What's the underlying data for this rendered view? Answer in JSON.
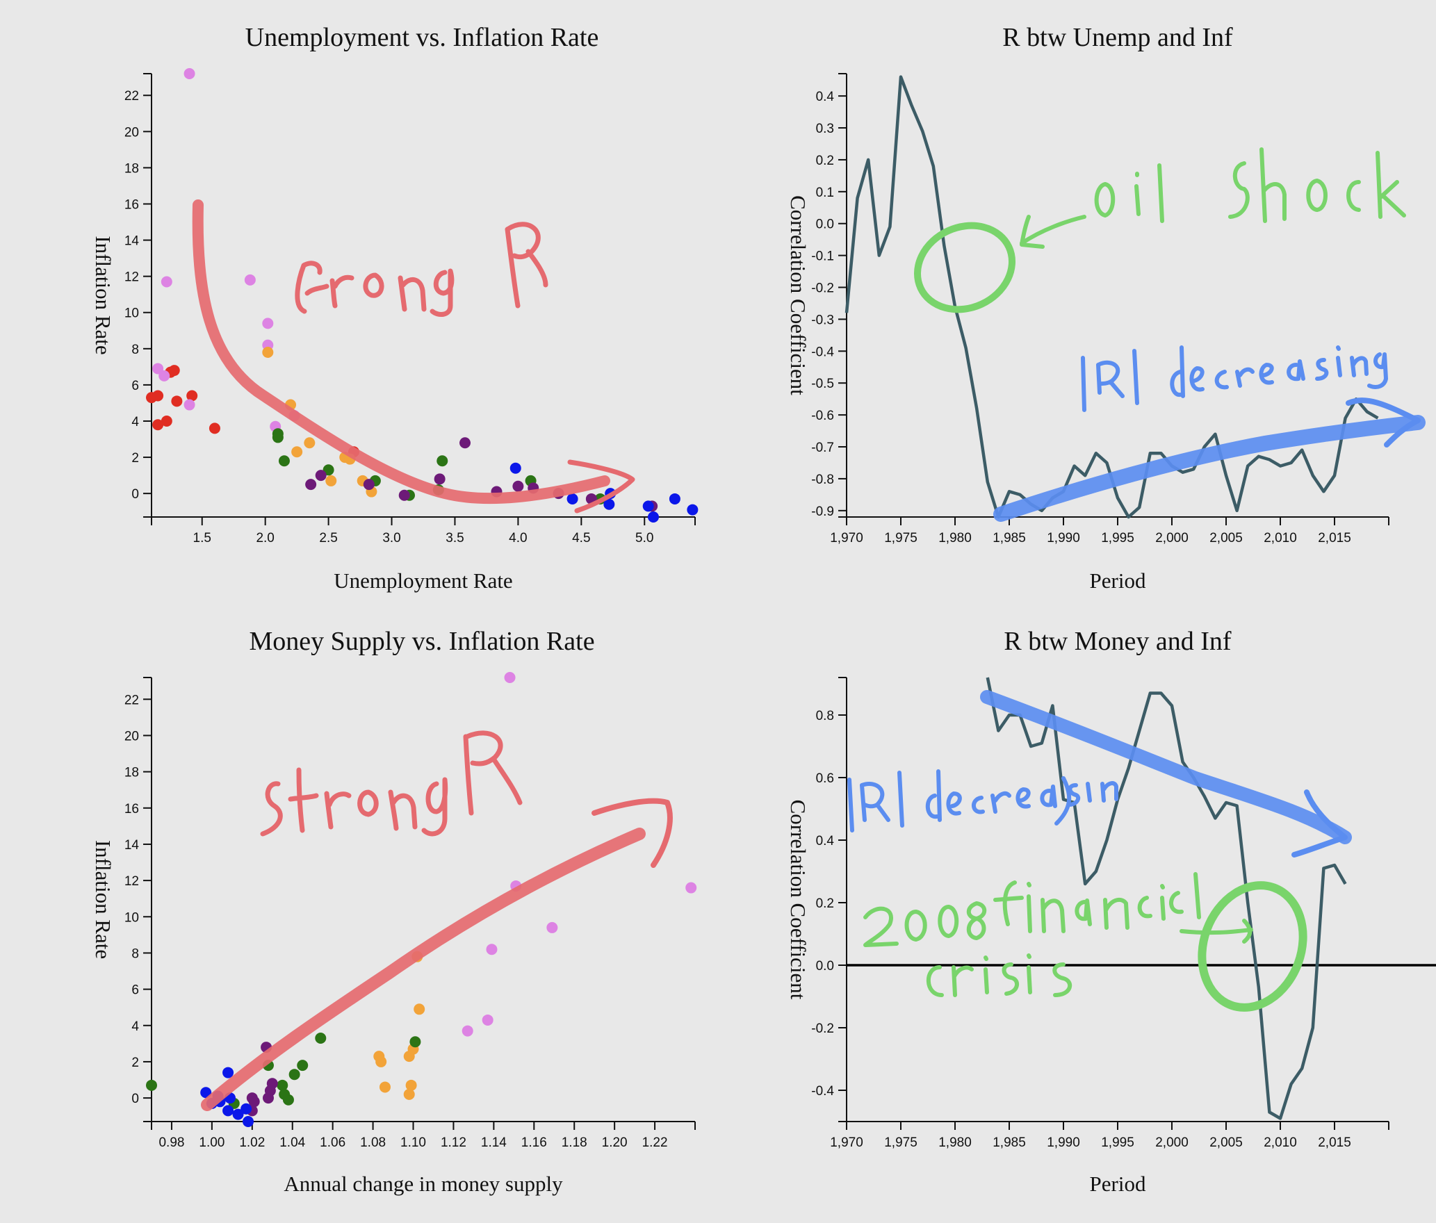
{
  "palette": {
    "red": "#e02d22",
    "violet": "#dd83e3",
    "orange": "#f2a339",
    "green": "#2b7415",
    "purple": "#6d1a78",
    "blue": "#0b17e9",
    "line": "#3c5c66",
    "annotation_red": "#e56a6f",
    "annotation_blue": "#5b8df0",
    "annotation_green": "#79d46b"
  },
  "chart_data": [
    {
      "id": "unemp-inf",
      "type": "scatter",
      "title": "Unemployment vs. Inflation Rate",
      "xlabel": "Unemployment Rate",
      "ylabel": "Inflation Rate",
      "xlim": [
        1.1,
        5.4
      ],
      "ylim": [
        -1.3,
        23.2
      ],
      "xticks": [
        "1.5",
        "2.0",
        "2.5",
        "3.0",
        "3.5",
        "4.0",
        "4.5",
        "5.0"
      ],
      "xtick_values": [
        1.5,
        2.0,
        2.5,
        3.0,
        3.5,
        4.0,
        4.5,
        5.0
      ],
      "yticks": [
        "0",
        "2",
        "4",
        "6",
        "8",
        "10",
        "12",
        "14",
        "16",
        "18",
        "20",
        "22"
      ],
      "ytick_values": [
        0,
        2,
        4,
        6,
        8,
        10,
        12,
        14,
        16,
        18,
        20,
        22
      ],
      "annotations": [
        "Strong R"
      ],
      "points": [
        {
          "x": 1.1,
          "y": 5.3,
          "c": "red"
        },
        {
          "x": 1.15,
          "y": 5.4,
          "c": "red"
        },
        {
          "x": 1.15,
          "y": 3.8,
          "c": "red"
        },
        {
          "x": 1.22,
          "y": 4.0,
          "c": "red"
        },
        {
          "x": 1.25,
          "y": 6.7,
          "c": "red"
        },
        {
          "x": 1.28,
          "y": 6.8,
          "c": "red"
        },
        {
          "x": 1.3,
          "y": 5.1,
          "c": "red"
        },
        {
          "x": 1.42,
          "y": 5.4,
          "c": "red"
        },
        {
          "x": 1.6,
          "y": 3.6,
          "c": "red"
        },
        {
          "x": 2.7,
          "y": 2.3,
          "c": "red"
        },
        {
          "x": 1.4,
          "y": 23.2,
          "c": "violet"
        },
        {
          "x": 1.22,
          "y": 11.7,
          "c": "violet"
        },
        {
          "x": 1.15,
          "y": 6.9,
          "c": "violet"
        },
        {
          "x": 1.2,
          "y": 6.5,
          "c": "violet"
        },
        {
          "x": 1.4,
          "y": 4.9,
          "c": "violet"
        },
        {
          "x": 1.88,
          "y": 11.8,
          "c": "violet"
        },
        {
          "x": 2.02,
          "y": 9.4,
          "c": "violet"
        },
        {
          "x": 2.02,
          "y": 8.2,
          "c": "violet"
        },
        {
          "x": 2.08,
          "y": 3.7,
          "c": "violet"
        },
        {
          "x": 2.23,
          "y": 4.3,
          "c": "violet"
        },
        {
          "x": 2.02,
          "y": 7.8,
          "c": "orange"
        },
        {
          "x": 2.2,
          "y": 4.9,
          "c": "orange"
        },
        {
          "x": 2.25,
          "y": 2.3,
          "c": "orange"
        },
        {
          "x": 2.35,
          "y": 2.8,
          "c": "orange"
        },
        {
          "x": 2.52,
          "y": 0.7,
          "c": "orange"
        },
        {
          "x": 2.63,
          "y": 2.0,
          "c": "orange"
        },
        {
          "x": 2.67,
          "y": 1.9,
          "c": "orange"
        },
        {
          "x": 2.77,
          "y": 0.7,
          "c": "orange"
        },
        {
          "x": 2.84,
          "y": 0.1,
          "c": "orange"
        },
        {
          "x": 2.1,
          "y": 3.3,
          "c": "green"
        },
        {
          "x": 2.1,
          "y": 3.1,
          "c": "green"
        },
        {
          "x": 2.15,
          "y": 1.8,
          "c": "green"
        },
        {
          "x": 2.5,
          "y": 1.3,
          "c": "green"
        },
        {
          "x": 2.87,
          "y": 0.7,
          "c": "green"
        },
        {
          "x": 3.14,
          "y": -0.1,
          "c": "green"
        },
        {
          "x": 3.37,
          "y": 0.2,
          "c": "green"
        },
        {
          "x": 3.4,
          "y": 1.8,
          "c": "green"
        },
        {
          "x": 4.1,
          "y": 0.7,
          "c": "green"
        },
        {
          "x": 4.65,
          "y": -0.3,
          "c": "green"
        },
        {
          "x": 2.36,
          "y": 0.5,
          "c": "purple"
        },
        {
          "x": 2.44,
          "y": 1.0,
          "c": "purple"
        },
        {
          "x": 2.82,
          "y": 0.5,
          "c": "purple"
        },
        {
          "x": 3.1,
          "y": -0.1,
          "c": "purple"
        },
        {
          "x": 3.38,
          "y": 0.8,
          "c": "purple"
        },
        {
          "x": 3.58,
          "y": 2.8,
          "c": "purple"
        },
        {
          "x": 3.83,
          "y": 0.1,
          "c": "purple"
        },
        {
          "x": 4.0,
          "y": 0.4,
          "c": "purple"
        },
        {
          "x": 4.12,
          "y": 0.3,
          "c": "purple"
        },
        {
          "x": 4.32,
          "y": 0.0,
          "c": "purple"
        },
        {
          "x": 4.58,
          "y": -0.3,
          "c": "purple"
        },
        {
          "x": 5.06,
          "y": -0.7,
          "c": "purple"
        },
        {
          "x": 3.98,
          "y": 1.4,
          "c": "blue"
        },
        {
          "x": 4.43,
          "y": -0.3,
          "c": "blue"
        },
        {
          "x": 4.72,
          "y": -0.6,
          "c": "blue"
        },
        {
          "x": 4.73,
          "y": 0.0,
          "c": "blue"
        },
        {
          "x": 5.03,
          "y": -0.7,
          "c": "blue"
        },
        {
          "x": 5.07,
          "y": -1.3,
          "c": "blue"
        },
        {
          "x": 5.24,
          "y": -0.3,
          "c": "blue"
        },
        {
          "x": 5.38,
          "y": -0.9,
          "c": "blue"
        }
      ]
    },
    {
      "id": "r-unemp-inf",
      "type": "line",
      "title": "R btw Unemp and Inf",
      "xlabel": "Period",
      "ylabel": "Correlation Coefficient",
      "xlim": [
        1970,
        2020
      ],
      "ylim": [
        -0.92,
        0.47
      ],
      "xticks": [
        "1,970",
        "1,975",
        "1,980",
        "1,985",
        "1,990",
        "1,995",
        "2,000",
        "2,005",
        "2,010",
        "2,015"
      ],
      "xtick_values": [
        1970,
        1975,
        1980,
        1985,
        1990,
        1995,
        2000,
        2005,
        2010,
        2015
      ],
      "yticks": [
        "-0.9",
        "-0.8",
        "-0.7",
        "-0.6",
        "-0.5",
        "-0.4",
        "-0.3",
        "-0.2",
        "-0.1",
        "0.0",
        "0.1",
        "0.2",
        "0.3",
        "0.4"
      ],
      "ytick_values": [
        -0.9,
        -0.8,
        -0.7,
        -0.6,
        -0.5,
        -0.4,
        -0.3,
        -0.2,
        -0.1,
        0.0,
        0.1,
        0.2,
        0.3,
        0.4
      ],
      "annotations": [
        "oil shock",
        "|R| decreasing"
      ],
      "x": [
        1970,
        1971,
        1972,
        1973,
        1974,
        1975,
        1976,
        1977,
        1978,
        1979,
        1980,
        1981,
        1982,
        1983,
        1984,
        1985,
        1986,
        1987,
        1988,
        1989,
        1990,
        1991,
        1992,
        1993,
        1994,
        1995,
        1996,
        1997,
        1998,
        1999,
        2000,
        2001,
        2002,
        2003,
        2004,
        2005,
        2006,
        2007,
        2008,
        2009,
        2010,
        2011,
        2012,
        2013,
        2014,
        2015,
        2016,
        2017,
        2018,
        2019
      ],
      "y": [
        -0.28,
        0.08,
        0.2,
        -0.1,
        -0.01,
        0.46,
        0.37,
        0.29,
        0.18,
        -0.07,
        -0.26,
        -0.39,
        -0.58,
        -0.81,
        -0.92,
        -0.84,
        -0.85,
        -0.88,
        -0.9,
        -0.86,
        -0.84,
        -0.76,
        -0.79,
        -0.72,
        -0.75,
        -0.86,
        -0.92,
        -0.89,
        -0.72,
        -0.72,
        -0.76,
        -0.78,
        -0.77,
        -0.7,
        -0.66,
        -0.79,
        -0.9,
        -0.76,
        -0.73,
        -0.74,
        -0.76,
        -0.75,
        -0.71,
        -0.79,
        -0.84,
        -0.79,
        -0.61,
        -0.55,
        -0.59,
        -0.61
      ]
    },
    {
      "id": "money-inf",
      "type": "scatter",
      "title": "Money Supply vs. Inflation Rate",
      "xlabel": "Annual change in money supply",
      "ylabel": "Inflation Rate",
      "xlim": [
        0.97,
        1.24
      ],
      "ylim": [
        -1.3,
        23.2
      ],
      "xticks": [
        "0.98",
        "1.00",
        "1.02",
        "1.04",
        "1.06",
        "1.08",
        "1.10",
        "1.12",
        "1.14",
        "1.16",
        "1.18",
        "1.20",
        "1.22"
      ],
      "xtick_values": [
        0.98,
        1.0,
        1.02,
        1.04,
        1.06,
        1.08,
        1.1,
        1.12,
        1.14,
        1.16,
        1.18,
        1.2,
        1.22
      ],
      "yticks": [
        "0",
        "2",
        "4",
        "6",
        "8",
        "10",
        "12",
        "14",
        "16",
        "18",
        "20",
        "22"
      ],
      "ytick_values": [
        0,
        2,
        4,
        6,
        8,
        10,
        12,
        14,
        16,
        18,
        20,
        22
      ],
      "annotations": [
        "Strong R"
      ],
      "points": [
        {
          "x": 1.148,
          "y": 23.2,
          "c": "violet"
        },
        {
          "x": 1.151,
          "y": 11.7,
          "c": "violet"
        },
        {
          "x": 1.238,
          "y": 11.6,
          "c": "violet"
        },
        {
          "x": 1.169,
          "y": 9.4,
          "c": "violet"
        },
        {
          "x": 1.139,
          "y": 8.2,
          "c": "violet"
        },
        {
          "x": 1.137,
          "y": 4.3,
          "c": "violet"
        },
        {
          "x": 1.127,
          "y": 3.7,
          "c": "violet"
        },
        {
          "x": 1.102,
          "y": 7.8,
          "c": "orange"
        },
        {
          "x": 1.103,
          "y": 4.9,
          "c": "orange"
        },
        {
          "x": 1.083,
          "y": 2.3,
          "c": "orange"
        },
        {
          "x": 1.084,
          "y": 2.0,
          "c": "orange"
        },
        {
          "x": 1.098,
          "y": 2.3,
          "c": "orange"
        },
        {
          "x": 1.1,
          "y": 2.7,
          "c": "orange"
        },
        {
          "x": 1.086,
          "y": 0.6,
          "c": "orange"
        },
        {
          "x": 1.099,
          "y": 0.7,
          "c": "orange"
        },
        {
          "x": 1.098,
          "y": 0.2,
          "c": "orange"
        },
        {
          "x": 0.97,
          "y": 0.7,
          "c": "green"
        },
        {
          "x": 1.054,
          "y": 3.3,
          "c": "green"
        },
        {
          "x": 1.101,
          "y": 3.1,
          "c": "green"
        },
        {
          "x": 1.045,
          "y": 1.8,
          "c": "green"
        },
        {
          "x": 1.041,
          "y": 1.3,
          "c": "green"
        },
        {
          "x": 1.028,
          "y": 1.8,
          "c": "green"
        },
        {
          "x": 1.035,
          "y": 0.7,
          "c": "green"
        },
        {
          "x": 1.036,
          "y": 0.2,
          "c": "green"
        },
        {
          "x": 1.038,
          "y": -0.1,
          "c": "green"
        },
        {
          "x": 1.011,
          "y": -0.3,
          "c": "green"
        },
        {
          "x": 1.027,
          "y": 2.8,
          "c": "purple"
        },
        {
          "x": 1.03,
          "y": 0.8,
          "c": "purple"
        },
        {
          "x": 1.029,
          "y": 0.4,
          "c": "purple"
        },
        {
          "x": 1.028,
          "y": 0.0,
          "c": "purple"
        },
        {
          "x": 1.02,
          "y": 0.0,
          "c": "purple"
        },
        {
          "x": 1.021,
          "y": -0.2,
          "c": "purple"
        },
        {
          "x": 1.02,
          "y": -0.7,
          "c": "purple"
        },
        {
          "x": 1.008,
          "y": 1.4,
          "c": "blue"
        },
        {
          "x": 0.997,
          "y": 0.3,
          "c": "blue"
        },
        {
          "x": 1.003,
          "y": 0.1,
          "c": "blue"
        },
        {
          "x": 1.004,
          "y": -0.2,
          "c": "blue"
        },
        {
          "x": 1.0,
          "y": -0.3,
          "c": "blue"
        },
        {
          "x": 1.009,
          "y": 0.0,
          "c": "blue"
        },
        {
          "x": 1.008,
          "y": -0.7,
          "c": "blue"
        },
        {
          "x": 1.013,
          "y": -0.9,
          "c": "blue"
        },
        {
          "x": 1.017,
          "y": -0.6,
          "c": "blue"
        },
        {
          "x": 1.018,
          "y": -1.3,
          "c": "blue"
        }
      ]
    },
    {
      "id": "r-money-inf",
      "type": "line",
      "title": "R btw Money and Inf",
      "xlabel": "Period",
      "ylabel": "Correlation Coefficient",
      "xlim": [
        1970,
        2020
      ],
      "ylim": [
        -0.5,
        0.92
      ],
      "xticks": [
        "1,970",
        "1,975",
        "1,980",
        "1,985",
        "1,990",
        "1,995",
        "2,000",
        "2,005",
        "2,010",
        "2,015"
      ],
      "xtick_values": [
        1970,
        1975,
        1980,
        1985,
        1990,
        1995,
        2000,
        2005,
        2010,
        2015
      ],
      "yticks": [
        "-0.4",
        "-0.2",
        "0.0",
        "0.2",
        "0.4",
        "0.6",
        "0.8"
      ],
      "ytick_values": [
        -0.4,
        -0.2,
        0.0,
        0.2,
        0.4,
        0.6,
        0.8
      ],
      "zero_line": 0.0,
      "annotations": [
        "|R| decreasing",
        "2008 financial crisis"
      ],
      "x": [
        1983,
        1984,
        1985,
        1986,
        1987,
        1988,
        1989,
        1990,
        1991,
        1992,
        1993,
        1994,
        1995,
        1996,
        1997,
        1998,
        1999,
        2000,
        2001,
        2002,
        2003,
        2004,
        2005,
        2006,
        2007,
        2008,
        2009,
        2010,
        2011,
        2012,
        2013,
        2014,
        2015,
        2016
      ],
      "y": [
        0.92,
        0.75,
        0.8,
        0.8,
        0.7,
        0.71,
        0.83,
        0.53,
        0.52,
        0.26,
        0.3,
        0.4,
        0.53,
        0.63,
        0.75,
        0.87,
        0.87,
        0.83,
        0.65,
        0.6,
        0.54,
        0.47,
        0.52,
        0.51,
        0.2,
        -0.07,
        -0.47,
        -0.49,
        -0.38,
        -0.33,
        -0.2,
        0.31,
        0.32,
        0.26
      ]
    }
  ]
}
